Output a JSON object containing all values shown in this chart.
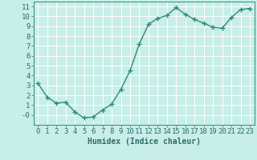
{
  "x": [
    0,
    1,
    2,
    3,
    4,
    5,
    6,
    7,
    8,
    9,
    10,
    11,
    12,
    13,
    14,
    15,
    16,
    17,
    18,
    19,
    20,
    21,
    22,
    23
  ],
  "y": [
    3.2,
    1.8,
    1.2,
    1.3,
    0.3,
    -0.3,
    -0.2,
    0.5,
    1.1,
    2.6,
    4.5,
    7.2,
    9.2,
    9.8,
    10.1,
    10.9,
    10.2,
    9.7,
    9.3,
    8.9,
    8.8,
    9.9,
    10.7,
    10.8
  ],
  "line_color": "#2e8b7a",
  "marker": "+",
  "marker_size": 4,
  "linewidth": 1.0,
  "background_color": "#c8eee8",
  "grid_color": "#ffffff",
  "xlabel": "Humidex (Indice chaleur)",
  "xlim": [
    -0.5,
    23.5
  ],
  "ylim": [
    -1.0,
    11.5
  ],
  "yticks": [
    0,
    1,
    2,
    3,
    4,
    5,
    6,
    7,
    8,
    9,
    10,
    11
  ],
  "ytick_labels": [
    "-0",
    "1",
    "2",
    "3",
    "4",
    "5",
    "6",
    "7",
    "8",
    "9",
    "10",
    "11"
  ],
  "xticks": [
    0,
    1,
    2,
    3,
    4,
    5,
    6,
    7,
    8,
    9,
    10,
    11,
    12,
    13,
    14,
    15,
    16,
    17,
    18,
    19,
    20,
    21,
    22,
    23
  ],
  "font_color": "#2e6b6a",
  "xlabel_fontsize": 7,
  "tick_fontsize": 6.5
}
